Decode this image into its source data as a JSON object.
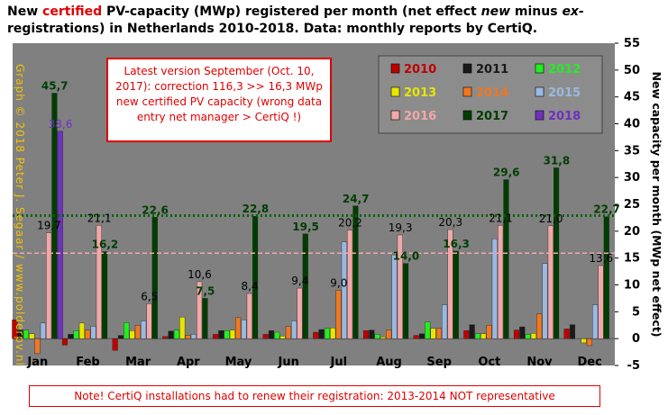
{
  "header": {
    "title_pre": "New ",
    "title_red": "certified",
    "title_mid1": " PV-capacity (MWp) registered per month (net effect ",
    "title_it1": "new",
    "title_mid2": " minus ",
    "title_it2": "ex-",
    "title_post": "registrations) in Netherlands 2010-2018. Data: monthly reports by CertiQ."
  },
  "callout_text": "Latest version September (Oct. 10, 2017): correction 116,3 >> 16,3 MWp new certified PV capacity (wrong data entry net manager > CertiQ !)",
  "note_text": "Note! CertiQ installations had to renew their registration: 2013-2014 NOT representative",
  "watermark_text": "Graph © 2018 Peter J. Segaar / www.polderpv.nl",
  "colors": {
    "plot_bg": "#808080",
    "legend_bg": "#8c8c8c",
    "series": {
      "2010": "#c00000",
      "2011": "#1a1a1a",
      "2012": "#22ee22",
      "2013": "#e6e600",
      "2014": "#f07820",
      "2015": "#9ab8e0",
      "2016": "#f0a8a8",
      "2017": "#003d00",
      "2018": "#7030c0"
    }
  },
  "chart_data": {
    "type": "bar",
    "categories": [
      "Jan",
      "Feb",
      "Mar",
      "Apr",
      "May",
      "Jun",
      "Jul",
      "Aug",
      "Sep",
      "Oct",
      "Nov",
      "Dec"
    ],
    "ylabel": "New capacity per month (MWp net effect)",
    "ylim": [
      -5,
      55
    ],
    "yticks": [
      -5,
      0,
      5,
      10,
      15,
      20,
      25,
      30,
      35,
      40,
      45,
      50,
      55
    ],
    "ytick_labels": [
      "-5",
      "0",
      "5",
      "10",
      "15",
      "20",
      "25",
      "30",
      "35",
      "40",
      "45",
      "50",
      "55"
    ],
    "legend_position": "top-right",
    "series": [
      {
        "name": "2010",
        "values": [
          3.5,
          -1.2,
          -2.2,
          0.4,
          0.8,
          0.8,
          1.2,
          1.5,
          0.6,
          1.5,
          1.6,
          1.8
        ]
      },
      {
        "name": "2011",
        "values": [
          1.6,
          0.8,
          0.6,
          1.4,
          1.5,
          1.5,
          1.7,
          1.6,
          0.9,
          2.6,
          2.2,
          2.6
        ]
      },
      {
        "name": "2012",
        "values": [
          1.6,
          1.5,
          3.0,
          1.6,
          1.5,
          1.2,
          1.9,
          0.8,
          3.1,
          0.9,
          0.8,
          0.0
        ]
      },
      {
        "name": "2013",
        "values": [
          0.9,
          2.9,
          1.5,
          4.0,
          1.6,
          0.5,
          2.0,
          0.3,
          1.9,
          0.9,
          1.0,
          -0.8
        ]
      },
      {
        "name": "2014",
        "values": [
          -2.8,
          1.6,
          2.5,
          0.6,
          3.9,
          2.3,
          9.0,
          1.6,
          1.9,
          2.5,
          4.6,
          -1.3
        ]
      },
      {
        "name": "2015",
        "values": [
          2.9,
          2.3,
          3.3,
          0.8,
          3.5,
          3.3,
          18.0,
          15.6,
          6.3,
          18.6,
          14.0,
          6.3
        ]
      },
      {
        "name": "2016",
        "values": [
          19.7,
          21.1,
          6.5,
          10.6,
          8.4,
          9.4,
          20.2,
          19.3,
          20.3,
          21.1,
          21.0,
          13.6
        ]
      },
      {
        "name": "2017",
        "values": [
          45.7,
          16.2,
          22.6,
          7.5,
          22.8,
          19.5,
          24.7,
          14.0,
          16.3,
          29.6,
          31.8,
          22.7
        ]
      },
      {
        "name": "2018",
        "values": [
          38.6,
          null,
          null,
          null,
          null,
          null,
          null,
          null,
          null,
          null,
          null,
          null
        ]
      }
    ],
    "data_labels": [
      {
        "text": "45,7",
        "month": 0,
        "series": "2017",
        "value": 45.7,
        "color": "#003d00"
      },
      {
        "text": "38,6",
        "month": 0,
        "series": "2018",
        "value": 38.6,
        "color": "#7030c0"
      },
      {
        "text": "19,7",
        "month": 0,
        "series": "2016",
        "value": 19.7,
        "color": "#000000"
      },
      {
        "text": "21,1",
        "month": 1,
        "series": "2016",
        "value": 21.1,
        "color": "#000000"
      },
      {
        "text": "16,2",
        "month": 1,
        "series": "2017",
        "value": 16.2,
        "color": "#003d00"
      },
      {
        "text": "22,6",
        "month": 2,
        "series": "2017",
        "value": 22.6,
        "color": "#003d00"
      },
      {
        "text": "6,5",
        "month": 2,
        "series": "2016",
        "value": 6.5,
        "color": "#000000"
      },
      {
        "text": "10,6",
        "month": 3,
        "series": "2016",
        "value": 10.6,
        "color": "#000000"
      },
      {
        "text": "7,5",
        "month": 3,
        "series": "2017",
        "value": 7.5,
        "color": "#003d00"
      },
      {
        "text": "22,8",
        "month": 4,
        "series": "2017",
        "value": 22.8,
        "color": "#003d00"
      },
      {
        "text": "8,4",
        "month": 4,
        "series": "2016",
        "value": 8.4,
        "color": "#000000"
      },
      {
        "text": "19,5",
        "month": 5,
        "series": "2017",
        "value": 19.5,
        "color": "#003d00"
      },
      {
        "text": "9,4",
        "month": 5,
        "series": "2016",
        "value": 9.4,
        "color": "#000000"
      },
      {
        "text": "9,0",
        "month": 6,
        "series": "2014",
        "value": 9.0,
        "color": "#000000"
      },
      {
        "text": "20,2",
        "month": 6,
        "series": "2016",
        "value": 20.2,
        "color": "#000000"
      },
      {
        "text": "24,7",
        "month": 6,
        "series": "2017",
        "value": 24.7,
        "color": "#003d00"
      },
      {
        "text": "19,3",
        "month": 7,
        "series": "2016",
        "value": 19.3,
        "color": "#000000"
      },
      {
        "text": "14,0",
        "month": 7,
        "series": "2017",
        "value": 14.0,
        "color": "#003d00"
      },
      {
        "text": "20,3",
        "month": 8,
        "series": "2016",
        "value": 20.3,
        "color": "#000000"
      },
      {
        "text": "16,3",
        "month": 8,
        "series": "2017",
        "value": 16.3,
        "color": "#003d00"
      },
      {
        "text": "29,6",
        "month": 9,
        "series": "2017",
        "value": 29.6,
        "color": "#003d00"
      },
      {
        "text": "21,1",
        "month": 9,
        "series": "2016",
        "value": 21.1,
        "color": "#000000"
      },
      {
        "text": "31,8",
        "month": 10,
        "series": "2017",
        "value": 31.8,
        "color": "#003d00"
      },
      {
        "text": "21,0",
        "month": 10,
        "series": "2016",
        "value": 21.0,
        "color": "#000000"
      },
      {
        "text": "22,7",
        "month": 11,
        "series": "2017",
        "value": 22.7,
        "color": "#003d00"
      },
      {
        "text": "13,6",
        "month": 11,
        "series": "2016",
        "value": 13.6,
        "color": "#000000"
      }
    ],
    "reference_lines": [
      {
        "value": 22.9,
        "color": "#006400",
        "style": "dotted"
      },
      {
        "value": 15.9,
        "color": "#f4a8a8",
        "style": "dashed"
      }
    ]
  }
}
